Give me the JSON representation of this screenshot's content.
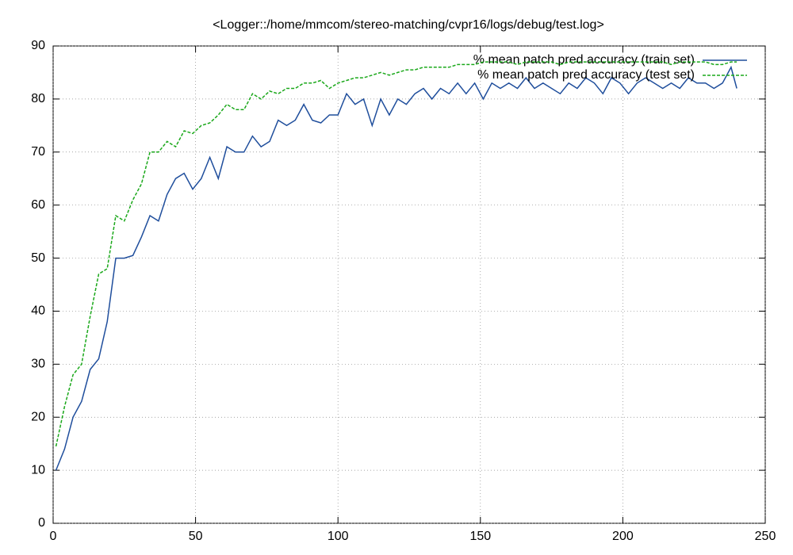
{
  "chart_data": {
    "type": "line",
    "title": "<Logger::/home/mmcom/stereo-matching/cvpr16/logs/debug/test.log>",
    "x": [
      1,
      4,
      7,
      10,
      13,
      16,
      19,
      22,
      25,
      28,
      31,
      34,
      37,
      40,
      43,
      46,
      49,
      52,
      55,
      58,
      61,
      64,
      67,
      70,
      73,
      76,
      79,
      82,
      85,
      88,
      91,
      94,
      97,
      100,
      103,
      106,
      109,
      112,
      115,
      118,
      121,
      124,
      127,
      130,
      133,
      136,
      139,
      142,
      145,
      148,
      151,
      154,
      157,
      160,
      163,
      166,
      169,
      172,
      175,
      178,
      181,
      184,
      187,
      190,
      193,
      196,
      199,
      202,
      205,
      208,
      211,
      214,
      217,
      220,
      223,
      226,
      229,
      232,
      235,
      238,
      240
    ],
    "series": [
      {
        "name": "% mean patch pred accuracy (train set)",
        "color": "#1f4e9c",
        "dash": false,
        "values": [
          10,
          14,
          20,
          23,
          29,
          31,
          38,
          50,
          50,
          50.5,
          54,
          58,
          57,
          62,
          65,
          66,
          63,
          65,
          69,
          65,
          71,
          70,
          70,
          73,
          71,
          72,
          76,
          75,
          76,
          79,
          76,
          75.5,
          77,
          77,
          81,
          79,
          80,
          75,
          80,
          77,
          80,
          79,
          81,
          82,
          80,
          82,
          81,
          83,
          81,
          83,
          80,
          83,
          82,
          83,
          82,
          84,
          82,
          83,
          82,
          81,
          83,
          82,
          84,
          83,
          81,
          84,
          83,
          81,
          83,
          84,
          83,
          82,
          83,
          82,
          84,
          83,
          83,
          82,
          83,
          86,
          82
        ]
      },
      {
        "name": "% mean patch pred accuracy (test set)",
        "color": "#1aa81a",
        "dash": true,
        "values": [
          14.5,
          22,
          28,
          30,
          39,
          47,
          48,
          58,
          57,
          61,
          64,
          70,
          70,
          72,
          71,
          74,
          73.5,
          75,
          75.5,
          77,
          79,
          78,
          78,
          81,
          80,
          81.5,
          81,
          82,
          82,
          83,
          83,
          83.5,
          82,
          83,
          83.5,
          84,
          84,
          84.5,
          85,
          84.5,
          85,
          85.5,
          85.5,
          86,
          86,
          86,
          86,
          86.5,
          86.5,
          86.5,
          87,
          87,
          87,
          87,
          86.5,
          87,
          87,
          87,
          87,
          86.5,
          87,
          87,
          87,
          87,
          87,
          87,
          87,
          87,
          87,
          87,
          87,
          87,
          86.5,
          87,
          87,
          87,
          87,
          86.5,
          86.5,
          87,
          87
        ]
      }
    ],
    "xlim": [
      0,
      250
    ],
    "ylim": [
      0,
      90
    ],
    "xticks": [
      0,
      50,
      100,
      150,
      200,
      250
    ],
    "yticks": [
      0,
      10,
      20,
      30,
      40,
      50,
      60,
      70,
      80,
      90
    ],
    "grid": true,
    "legend": "top-right"
  }
}
